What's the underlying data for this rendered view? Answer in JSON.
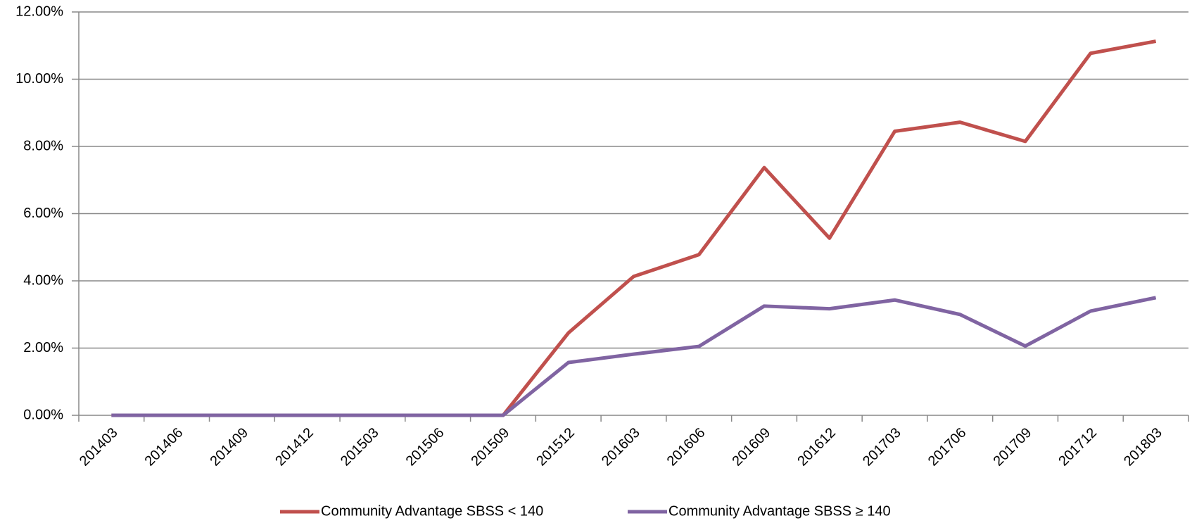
{
  "chart_data": {
    "type": "line",
    "categories": [
      "201403",
      "201406",
      "201409",
      "201412",
      "201503",
      "201506",
      "201509",
      "201512",
      "201603",
      "201606",
      "201609",
      "201612",
      "201703",
      "201706",
      "201709",
      "201712",
      "201803"
    ],
    "series": [
      {
        "name": "Community Advantage SBSS < 140",
        "color": "#c0504d",
        "values": [
          0,
          0,
          0,
          0,
          0,
          0,
          0,
          2.45,
          4.13,
          4.78,
          7.37,
          5.27,
          8.45,
          8.72,
          8.15,
          10.77,
          11.13
        ]
      },
      {
        "name": "Community Advantage SBSS ≥ 140",
        "color": "#8064a2",
        "values": [
          0,
          0,
          0,
          0,
          0,
          0,
          0,
          1.57,
          1.82,
          2.05,
          3.25,
          3.17,
          3.43,
          3.0,
          2.06,
          3.1,
          3.5
        ]
      }
    ],
    "ylim": [
      0,
      12
    ],
    "yticks": [
      {
        "value": 0,
        "label": "0.00%"
      },
      {
        "value": 2,
        "label": "2.00%"
      },
      {
        "value": 4,
        "label": "4.00%"
      },
      {
        "value": 6,
        "label": "6.00%"
      },
      {
        "value": 8,
        "label": "8.00%"
      },
      {
        "value": 10,
        "label": "10.00%"
      },
      {
        "value": 12,
        "label": "12.00%"
      }
    ],
    "grid": true,
    "legend": "bottom"
  }
}
